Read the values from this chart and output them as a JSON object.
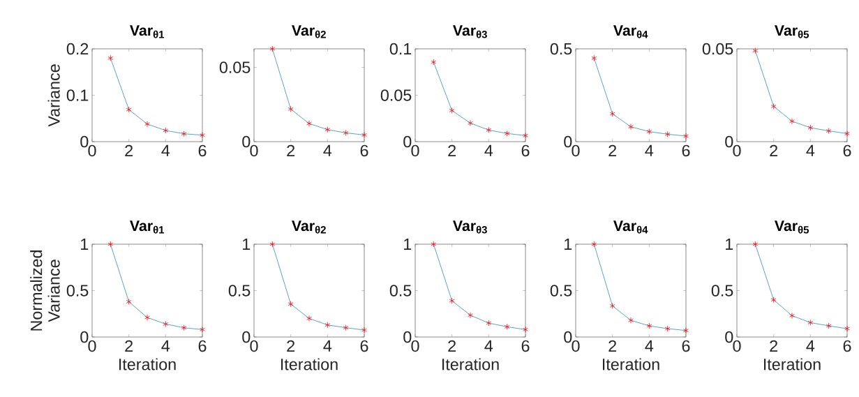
{
  "chart_data": [
    {
      "type": "line",
      "title": "Var$_{θ1}$",
      "ylabel": "Variance",
      "x": [
        1,
        2,
        3,
        4,
        5,
        6
      ],
      "xlim": [
        0,
        6
      ],
      "xticks": [
        0,
        2,
        4,
        6
      ],
      "ylim": [
        0,
        0.2
      ],
      "yticks": [
        0,
        0.1,
        0.2
      ],
      "marker": "cross",
      "series": [
        {
          "color": "#0072bd",
          "colors": [
            "#ff0000",
            "#ff0000",
            "#ff0000",
            "#ff0000",
            "#ff0000",
            "#ff0000"
          ],
          "values": [
            0.18,
            0.069,
            0.038,
            0.024,
            0.017,
            0.014
          ]
        }
      ]
    },
    {
      "type": "line",
      "title": "Var$_{θ2}$",
      "x": [
        1,
        2,
        3,
        4,
        5,
        6
      ],
      "xlim": [
        0,
        6
      ],
      "xticks": [
        0,
        2,
        4,
        6
      ],
      "ylim": [
        0,
        0.0625
      ],
      "yticks": [
        0,
        0.05
      ],
      "marker": "cross",
      "series": [
        {
          "color": "#0072bd",
          "colors": [
            "#ff0000",
            "#ff0000",
            "#ff0000",
            "#ff0000",
            "#ff0000",
            "#ff0000"
          ],
          "values": [
            0.0625,
            0.0219,
            0.0122,
            0.0081,
            0.0059,
            0.0045
          ]
        }
      ]
    },
    {
      "type": "line",
      "title": "Var$_{θ3}$",
      "x": [
        1,
        2,
        3,
        4,
        5,
        6
      ],
      "xlim": [
        0,
        6
      ],
      "xticks": [
        0,
        2,
        4,
        6
      ],
      "ylim": [
        0,
        0.1
      ],
      "yticks": [
        0,
        0.05,
        0.1
      ],
      "marker": "cross",
      "series": [
        {
          "color": "#0072bd",
          "colors": [
            "#ff0000",
            "#ff0000",
            "#ff0000",
            "#ff0000",
            "#ff0000",
            "#ff0000"
          ],
          "values": [
            0.0857,
            0.0335,
            0.02,
            0.0125,
            0.0088,
            0.0065
          ]
        }
      ]
    },
    {
      "type": "line",
      "title": "Var$_{θ4}$",
      "x": [
        1,
        2,
        3,
        4,
        5,
        6
      ],
      "xlim": [
        0,
        6
      ],
      "xticks": [
        0,
        2,
        4,
        6
      ],
      "ylim": [
        0,
        0.5
      ],
      "yticks": [
        0,
        0.5
      ],
      "marker": "cross",
      "series": [
        {
          "color": "#0072bd",
          "colors": [
            "#ff0000",
            "#ff0000",
            "#ff0000",
            "#ff0000",
            "#ff0000",
            "#ff0000"
          ],
          "values": [
            0.45,
            0.15,
            0.08,
            0.054,
            0.04,
            0.03
          ]
        }
      ]
    },
    {
      "type": "line",
      "title": "Var$_{θ5}$",
      "x": [
        1,
        2,
        3,
        4,
        5,
        6
      ],
      "xlim": [
        0,
        6
      ],
      "xticks": [
        0,
        2,
        4,
        6
      ],
      "ylim": [
        0,
        0.05
      ],
      "yticks": [
        0,
        0.05
      ],
      "marker": "cross",
      "series": [
        {
          "color": "#0072bd",
          "colors": [
            "#ff0000",
            "#ff0000",
            "#ff0000",
            "#ff0000",
            "#ff0000",
            "#ff0000"
          ],
          "values": [
            0.049,
            0.019,
            0.011,
            0.0075,
            0.0058,
            0.0043
          ]
        }
      ]
    },
    {
      "type": "line",
      "title": "Var$_{θ1}$",
      "ylabel": "Normalized Variance",
      "xlabel": "Iteration",
      "x": [
        1,
        2,
        3,
        4,
        5,
        6
      ],
      "xlim": [
        0,
        6
      ],
      "xticks": [
        0,
        2,
        4,
        6
      ],
      "ylim": [
        0,
        1
      ],
      "yticks": [
        0,
        0.5,
        1
      ],
      "marker": "cross",
      "series": [
        {
          "color": "#0072bd",
          "colors": [
            "#ff0000",
            "#ff0000",
            "#ff0000",
            "#ff0000",
            "#ff0000",
            "#ff0000"
          ],
          "values": [
            1,
            0.38,
            0.21,
            0.14,
            0.1,
            0.08
          ]
        }
      ]
    },
    {
      "type": "line",
      "title": "Var$_{θ2}$",
      "xlabel": "Iteration",
      "x": [
        1,
        2,
        3,
        4,
        5,
        6
      ],
      "xlim": [
        0,
        6
      ],
      "xticks": [
        0,
        2,
        4,
        6
      ],
      "ylim": [
        0,
        1
      ],
      "yticks": [
        0,
        0.5,
        1
      ],
      "marker": "cross",
      "series": [
        {
          "color": "#0072bd",
          "colors": [
            "#ff0000",
            "#ff0000",
            "#ff0000",
            "#ff0000",
            "#ff0000",
            "#ff0000"
          ],
          "values": [
            1,
            0.355,
            0.2,
            0.13,
            0.1,
            0.075
          ]
        }
      ]
    },
    {
      "type": "line",
      "title": "Var$_{θ3}$",
      "xlabel": "Iteration",
      "x": [
        1,
        2,
        3,
        4,
        5,
        6
      ],
      "xlim": [
        0,
        6
      ],
      "xticks": [
        0,
        2,
        4,
        6
      ],
      "ylim": [
        0,
        1
      ],
      "yticks": [
        0,
        0.5,
        1
      ],
      "marker": "cross",
      "series": [
        {
          "color": "#0072bd",
          "colors": [
            "#ff0000",
            "#ff0000",
            "#ff0000",
            "#ff0000",
            "#ff0000",
            "#ff0000"
          ],
          "values": [
            1,
            0.39,
            0.235,
            0.15,
            0.11,
            0.08
          ]
        }
      ]
    },
    {
      "type": "line",
      "title": "Var$_{θ4}$",
      "xlabel": "Iteration",
      "x": [
        1,
        2,
        3,
        4,
        5,
        6
      ],
      "xlim": [
        0,
        6
      ],
      "xticks": [
        0,
        2,
        4,
        6
      ],
      "ylim": [
        0,
        1
      ],
      "yticks": [
        0,
        0.5,
        1
      ],
      "marker": "cross",
      "series": [
        {
          "color": "#0072bd",
          "colors": [
            "#ff0000",
            "#ff0000",
            "#ff0000",
            "#ff0000",
            "#ff0000",
            "#ff0000"
          ],
          "values": [
            1,
            0.335,
            0.18,
            0.12,
            0.09,
            0.07
          ]
        }
      ]
    },
    {
      "type": "line",
      "title": "Var$_{θ5}$",
      "xlabel": "Iteration",
      "x": [
        1,
        2,
        3,
        4,
        5,
        6
      ],
      "xlim": [
        0,
        6
      ],
      "xticks": [
        0,
        2,
        4,
        6
      ],
      "ylim": [
        0,
        1
      ],
      "yticks": [
        0,
        0.5,
        1
      ],
      "marker": "cross",
      "series": [
        {
          "color": "#0072bd",
          "colors": [
            "#ff0000",
            "#ff0000",
            "#ff0000",
            "#ff0000",
            "#ff0000",
            "#ff0000"
          ],
          "values": [
            1,
            0.4,
            0.23,
            0.155,
            0.12,
            0.09
          ]
        }
      ]
    }
  ]
}
